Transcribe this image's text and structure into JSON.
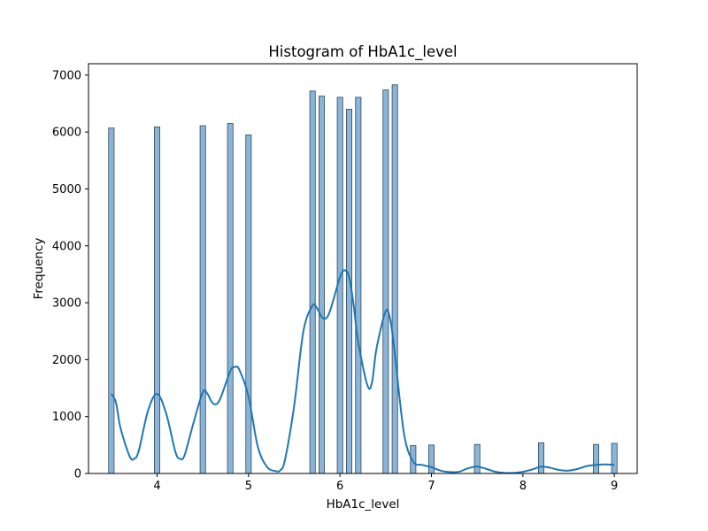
{
  "chart_data": {
    "type": "bar",
    "title": "Histogram of HbA1c_level",
    "xlabel": "HbA1c_level",
    "ylabel": "Frequency",
    "xlim": [
      3.25,
      9.25
    ],
    "ylim": [
      0,
      7200
    ],
    "xticks": [
      4,
      5,
      6,
      7,
      8,
      9
    ],
    "yticks": [
      0,
      1000,
      2000,
      3000,
      4000,
      5000,
      6000,
      7000
    ],
    "bin_width": 0.06,
    "bins": [
      {
        "x": 3.5,
        "value": 6070
      },
      {
        "x": 4.0,
        "value": 6090
      },
      {
        "x": 4.5,
        "value": 6110
      },
      {
        "x": 4.8,
        "value": 6150
      },
      {
        "x": 5.0,
        "value": 5950
      },
      {
        "x": 5.7,
        "value": 6720
      },
      {
        "x": 5.8,
        "value": 6630
      },
      {
        "x": 6.0,
        "value": 6610
      },
      {
        "x": 6.1,
        "value": 6400
      },
      {
        "x": 6.2,
        "value": 6610
      },
      {
        "x": 6.5,
        "value": 6740
      },
      {
        "x": 6.6,
        "value": 6830
      },
      {
        "x": 6.8,
        "value": 490
      },
      {
        "x": 7.0,
        "value": 500
      },
      {
        "x": 7.5,
        "value": 510
      },
      {
        "x": 8.2,
        "value": 540
      },
      {
        "x": 8.8,
        "value": 510
      },
      {
        "x": 9.0,
        "value": 530
      }
    ],
    "kde": {
      "x": [
        3.5,
        3.55,
        3.6,
        3.7,
        3.75,
        3.8,
        3.9,
        4.0,
        4.1,
        4.2,
        4.25,
        4.3,
        4.4,
        4.5,
        4.55,
        4.6,
        4.65,
        4.7,
        4.8,
        4.85,
        4.9,
        5.0,
        5.1,
        5.2,
        5.3,
        5.35,
        5.4,
        5.5,
        5.6,
        5.7,
        5.75,
        5.8,
        5.85,
        5.9,
        6.0,
        6.05,
        6.1,
        6.15,
        6.2,
        6.3,
        6.35,
        6.4,
        6.5,
        6.55,
        6.6,
        6.7,
        6.8,
        6.9,
        7.0,
        7.1,
        7.2,
        7.3,
        7.4,
        7.5,
        7.6,
        7.7,
        7.8,
        7.9,
        8.0,
        8.1,
        8.2,
        8.3,
        8.4,
        8.5,
        8.6,
        8.7,
        8.8,
        8.9,
        9.0
      ],
      "y": [
        1400,
        1250,
        800,
        300,
        260,
        400,
        1100,
        1400,
        1050,
        380,
        260,
        320,
        900,
        1430,
        1400,
        1250,
        1220,
        1350,
        1800,
        1870,
        1820,
        1350,
        480,
        120,
        40,
        60,
        250,
        1200,
        2500,
        2950,
        2900,
        2750,
        2730,
        2900,
        3450,
        3570,
        3450,
        2950,
        2300,
        1550,
        1600,
        2200,
        2850,
        2700,
        2100,
        700,
        210,
        150,
        110,
        50,
        25,
        30,
        90,
        120,
        80,
        30,
        10,
        10,
        30,
        70,
        120,
        100,
        60,
        50,
        80,
        130,
        150,
        160,
        150
      ]
    },
    "colors": {
      "bar_fill": "#8bb4d6",
      "bar_edge": "#2f4a5e",
      "kde_line": "#1f77b4"
    },
    "grid": false,
    "legend": "none"
  }
}
